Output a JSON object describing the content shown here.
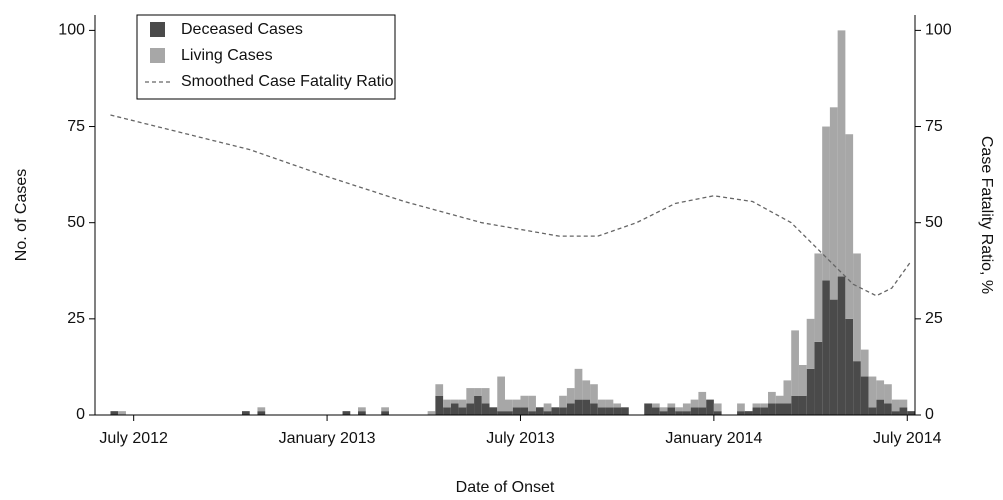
{
  "chart_data": {
    "type": "histogram",
    "stacked": true,
    "x_label": "Date of Onset",
    "y_label": "No. of Cases",
    "y2_label": "Case Fatality Ratio, %",
    "bins": [
      2012.4,
      2012.42,
      2012.44,
      2012.46,
      2012.48,
      2012.5,
      2012.52,
      2012.54,
      2012.56,
      2012.58,
      2012.6,
      2012.62,
      2012.64,
      2012.66,
      2012.68,
      2012.7,
      2012.72,
      2012.74,
      2012.76,
      2012.78,
      2012.8,
      2012.82,
      2012.84,
      2012.86,
      2012.88,
      2012.9,
      2012.92,
      2012.94,
      2012.96,
      2012.98,
      2013.0,
      2013.02,
      2013.04,
      2013.06,
      2013.08,
      2013.1,
      2013.12,
      2013.14,
      2013.16,
      2013.18,
      2013.2,
      2013.22,
      2013.24,
      2013.26,
      2013.28,
      2013.3,
      2013.32,
      2013.34,
      2013.36,
      2013.38,
      2013.4,
      2013.42,
      2013.44,
      2013.46,
      2013.48,
      2013.5,
      2013.52,
      2013.54,
      2013.56,
      2013.58,
      2013.6,
      2013.62,
      2013.64,
      2013.66,
      2013.68,
      2013.7,
      2013.72,
      2013.74,
      2013.76,
      2013.78,
      2013.8,
      2013.82,
      2013.84,
      2013.86,
      2013.88,
      2013.9,
      2013.92,
      2013.94,
      2013.96,
      2013.98,
      2014.0,
      2014.02,
      2014.04,
      2014.06,
      2014.08,
      2014.1,
      2014.12,
      2014.14,
      2014.16,
      2014.18,
      2014.2,
      2014.22,
      2014.24,
      2014.26,
      2014.28,
      2014.3,
      2014.32,
      2014.34,
      2014.36,
      2014.38,
      2014.4,
      2014.42,
      2014.44,
      2014.46,
      2014.48,
      2014.5,
      2014.52
    ],
    "series": [
      {
        "name": "Deceased Cases",
        "color": "#4a4a4a",
        "values": [
          0,
          0,
          1,
          0,
          0,
          0,
          0,
          0,
          0,
          0,
          0,
          0,
          0,
          0,
          0,
          0,
          0,
          0,
          0,
          1,
          0,
          1,
          0,
          0,
          0,
          0,
          0,
          0,
          0,
          0,
          0,
          0,
          1,
          0,
          1,
          0,
          0,
          1,
          0,
          0,
          0,
          0,
          0,
          0,
          5,
          2,
          3,
          2,
          3,
          5,
          3,
          2,
          1,
          1,
          2,
          2,
          1,
          2,
          1,
          2,
          2,
          3,
          4,
          4,
          3,
          2,
          2,
          2,
          2,
          0,
          0,
          3,
          2,
          1,
          2,
          1,
          1,
          2,
          2,
          4,
          1,
          0,
          0,
          1,
          1,
          2,
          2,
          3,
          3,
          3,
          5,
          5,
          12,
          19,
          35,
          30,
          36,
          25,
          14,
          10,
          2,
          4,
          3,
          1,
          2,
          1
        ]
      },
      {
        "name": "Living Cases",
        "color": "#a7a7a7",
        "values": [
          0,
          0,
          0,
          1,
          0,
          0,
          0,
          0,
          0,
          0,
          0,
          0,
          0,
          0,
          0,
          0,
          0,
          0,
          0,
          0,
          0,
          1,
          0,
          0,
          0,
          0,
          0,
          0,
          0,
          0,
          0,
          0,
          0,
          0,
          1,
          0,
          0,
          1,
          0,
          0,
          0,
          0,
          0,
          1,
          3,
          2,
          1,
          2,
          4,
          2,
          4,
          0,
          9,
          3,
          2,
          3,
          4,
          0,
          2,
          0,
          3,
          4,
          8,
          5,
          5,
          2,
          2,
          1,
          0,
          0,
          0,
          0,
          1,
          1,
          1,
          1,
          2,
          2,
          4,
          0,
          2,
          0,
          0,
          2,
          0,
          1,
          1,
          3,
          2,
          6,
          17,
          8,
          13,
          23,
          40,
          50,
          64,
          48,
          28,
          7,
          8,
          5,
          5,
          3,
          2,
          0
        ]
      },
      {
        "name": "Smoothed Case Fatality Ratio",
        "color": "#666666",
        "type": "line",
        "dashed": true,
        "axis": "y2",
        "x": [
          2012.44,
          2012.6,
          2012.8,
          2013.0,
          2013.2,
          2013.4,
          2013.6,
          2013.7,
          2013.8,
          2013.9,
          2014.0,
          2014.1,
          2014.2,
          2014.3,
          2014.36,
          2014.42,
          2014.46,
          2014.51
        ],
        "values": [
          78,
          74,
          69,
          62,
          55.5,
          50,
          46.5,
          46.5,
          50,
          55,
          57,
          55.5,
          50,
          40,
          34,
          31,
          33,
          40
        ]
      }
    ],
    "xlim": [
      2012.4,
      2014.52
    ],
    "xticks": [
      {
        "value": 2012.5,
        "label": "July 2012"
      },
      {
        "value": 2013.0,
        "label": "January 2013"
      },
      {
        "value": 2013.5,
        "label": "July 2013"
      },
      {
        "value": 2014.0,
        "label": "January 2014"
      },
      {
        "value": 2014.5,
        "label": "July 2014"
      }
    ],
    "ylim": [
      0,
      104
    ],
    "yticks": [
      0,
      25,
      50,
      75,
      100
    ],
    "y2lim": [
      0,
      104
    ],
    "y2ticks": [
      0,
      25,
      50,
      75,
      100
    ],
    "legend": "upper left"
  }
}
